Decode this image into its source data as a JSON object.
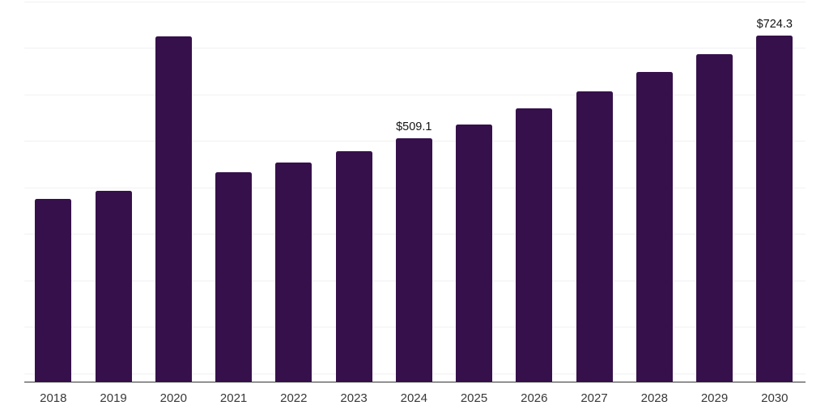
{
  "chart_data": {
    "type": "bar",
    "title": "",
    "xlabel": "",
    "ylabel": "",
    "categories": [
      "2018",
      "2019",
      "2020",
      "2021",
      "2022",
      "2023",
      "2024",
      "2025",
      "2026",
      "2027",
      "2028",
      "2029",
      "2030"
    ],
    "values": [
      382.2,
      399.2,
      723.1,
      437.8,
      458.6,
      482.9,
      509.1,
      537.7,
      571.6,
      607.2,
      647.9,
      685.2,
      724.3
    ],
    "data_labels": [
      {
        "category": "2024",
        "text": "$509.1"
      },
      {
        "category": "2030",
        "text": "$724.3"
      }
    ],
    "value_prefix": "$",
    "ylim": [
      0,
      800
    ],
    "y_axis_labels_visible": false,
    "grid": "horizontal",
    "legend": "none"
  },
  "colors": {
    "background": "#ffffff",
    "bar": "#36104b",
    "gridline": "#f1f1f4",
    "axis_line": "#333333",
    "tick_label": "#383838",
    "value_label": "#141414"
  }
}
